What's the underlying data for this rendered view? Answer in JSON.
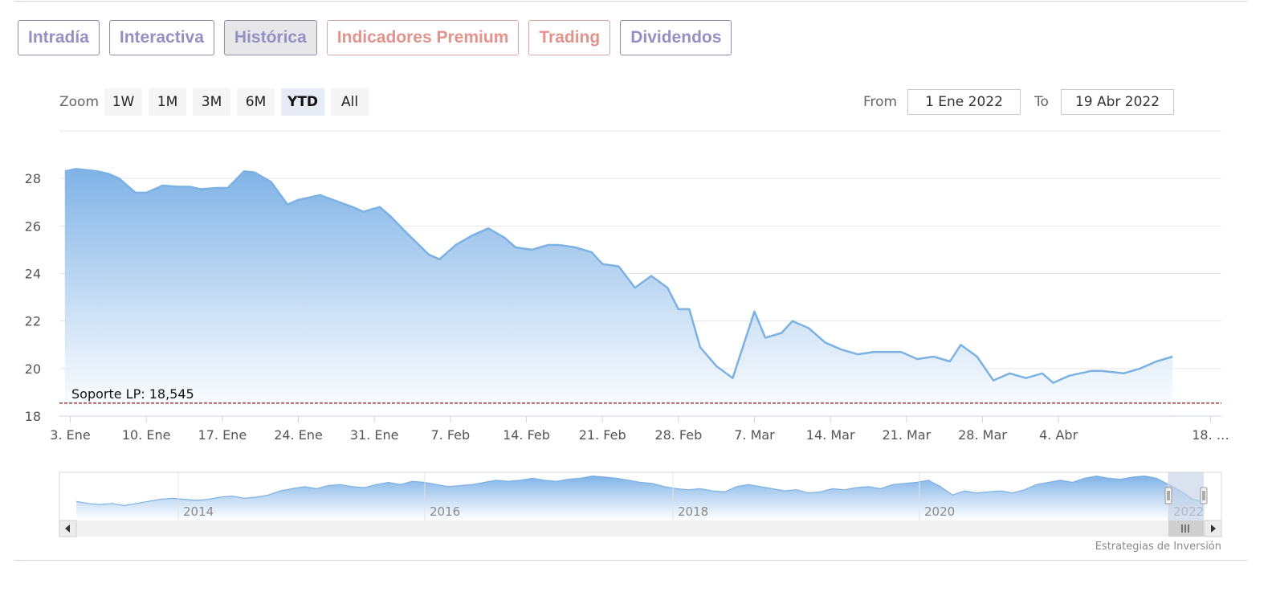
{
  "tabs": [
    {
      "label": "Intradía",
      "active": false,
      "premium": false
    },
    {
      "label": "Interactiva",
      "active": false,
      "premium": false
    },
    {
      "label": "Histórica",
      "active": true,
      "premium": false
    },
    {
      "label": "Indicadores Premium",
      "active": false,
      "premium": true
    },
    {
      "label": "Trading",
      "active": false,
      "premium": true
    },
    {
      "label": "Dividendos",
      "active": false,
      "premium": false
    }
  ],
  "zoom": {
    "label": "Zoom",
    "buttons": [
      "1W",
      "1M",
      "3M",
      "6M",
      "YTD",
      "All"
    ],
    "selected": "YTD"
  },
  "range": {
    "from_label": "From",
    "from_value": "1 Ene 2022",
    "to_label": "To",
    "to_value": "19 Abr 2022"
  },
  "colors": {
    "line": "#7cb1e4",
    "fill_top": "#7fb2e6",
    "support": "#8b1a1a",
    "grid": "#e6e6e6",
    "navigator_mask": "#c6d3e6"
  },
  "credit": "Estrategias de Inversión",
  "chart_data": {
    "type": "area",
    "title": "",
    "xlabel": "",
    "ylabel": "",
    "ylim": [
      18,
      30
    ],
    "yticks": [
      18,
      20,
      22,
      24,
      26,
      28
    ],
    "grid": true,
    "xticks": [
      {
        "label": "3. Ene",
        "day": 2
      },
      {
        "label": "10. Ene",
        "day": 9
      },
      {
        "label": "17. Ene",
        "day": 16
      },
      {
        "label": "24. Ene",
        "day": 23
      },
      {
        "label": "31. Ene",
        "day": 30
      },
      {
        "label": "7. Feb",
        "day": 37
      },
      {
        "label": "14. Feb",
        "day": 44
      },
      {
        "label": "21. Feb",
        "day": 51
      },
      {
        "label": "28. Feb",
        "day": 58
      },
      {
        "label": "7. Mar",
        "day": 65
      },
      {
        "label": "14. Mar",
        "day": 72
      },
      {
        "label": "21. Mar",
        "day": 79
      },
      {
        "label": "28. Mar",
        "day": 86
      },
      {
        "label": "4. Abr",
        "day": 93
      },
      {
        "label": "18. …",
        "day": 107
      }
    ],
    "series": [
      {
        "points": [
          [
            1.5,
            28.3
          ],
          [
            2.5,
            28.4
          ],
          [
            4.5,
            28.3
          ],
          [
            5.5,
            28.2
          ],
          [
            6.5,
            28.0
          ],
          [
            8,
            27.4
          ],
          [
            9,
            27.4
          ],
          [
            10.5,
            27.7
          ],
          [
            12,
            27.65
          ],
          [
            13,
            27.65
          ],
          [
            14,
            27.55
          ],
          [
            15.5,
            27.6
          ],
          [
            16.5,
            27.6
          ],
          [
            18,
            28.3
          ],
          [
            19,
            28.25
          ],
          [
            20.5,
            27.85
          ],
          [
            22,
            26.9
          ],
          [
            23,
            27.1
          ],
          [
            25,
            27.3
          ],
          [
            26.5,
            27.05
          ],
          [
            28,
            26.8
          ],
          [
            29,
            26.6
          ],
          [
            30.5,
            26.8
          ],
          [
            31.5,
            26.4
          ],
          [
            33,
            25.7
          ],
          [
            35,
            24.8
          ],
          [
            36,
            24.6
          ],
          [
            37.5,
            25.2
          ],
          [
            39,
            25.6
          ],
          [
            40.5,
            25.9
          ],
          [
            42,
            25.5
          ],
          [
            43,
            25.1
          ],
          [
            44.5,
            25.0
          ],
          [
            46,
            25.2
          ],
          [
            47,
            25.2
          ],
          [
            48.5,
            25.1
          ],
          [
            50,
            24.9
          ],
          [
            51,
            24.4
          ],
          [
            52.5,
            24.3
          ],
          [
            54,
            23.4
          ],
          [
            55.5,
            23.9
          ],
          [
            57,
            23.4
          ],
          [
            58,
            22.5
          ],
          [
            59,
            22.5
          ],
          [
            60,
            20.9
          ],
          [
            61.5,
            20.1
          ],
          [
            63,
            19.6
          ],
          [
            65,
            22.4
          ],
          [
            66,
            21.3
          ],
          [
            67.5,
            21.5
          ],
          [
            68.5,
            22.0
          ],
          [
            70,
            21.7
          ],
          [
            71.5,
            21.1
          ],
          [
            73,
            20.8
          ],
          [
            74.5,
            20.6
          ],
          [
            76,
            20.7
          ],
          [
            77,
            20.7
          ],
          [
            78.5,
            20.7
          ],
          [
            80,
            20.4
          ],
          [
            81.5,
            20.5
          ],
          [
            83,
            20.3
          ],
          [
            84,
            21.0
          ],
          [
            85.5,
            20.5
          ],
          [
            87,
            19.5
          ],
          [
            88.5,
            19.8
          ],
          [
            90,
            19.6
          ],
          [
            91.5,
            19.8
          ],
          [
            92.5,
            19.4
          ],
          [
            94,
            19.7
          ],
          [
            96,
            19.9
          ],
          [
            97,
            19.9
          ],
          [
            99,
            19.8
          ],
          [
            100.5,
            20.0
          ],
          [
            102,
            20.3
          ],
          [
            103.5,
            20.5
          ]
        ]
      }
    ],
    "annotations": [
      {
        "type": "hline",
        "y": 18.545,
        "label": "Soporte LP: 18,545"
      }
    ],
    "navigator": {
      "years": [
        "2014",
        "2016",
        "2018",
        "2020",
        "2022"
      ],
      "values": [
        14,
        13,
        12.5,
        13,
        12,
        13,
        14,
        15,
        15.5,
        15,
        14.5,
        15,
        16,
        16.5,
        15.5,
        16,
        17,
        19,
        20,
        21,
        20,
        21.5,
        22,
        21,
        20.5,
        22,
        23,
        22,
        23.5,
        23,
        22,
        21,
        21.5,
        22,
        23,
        24,
        23.5,
        24,
        25,
        24,
        23.5,
        24.5,
        25,
        26,
        25.5,
        25,
        24,
        23,
        22.5,
        21,
        20,
        19.5,
        20,
        19,
        18.5,
        21,
        22,
        21,
        20,
        19,
        19.5,
        18,
        18.5,
        20,
        19.5,
        20.5,
        21,
        20,
        22,
        22.5,
        23,
        24,
        21,
        17,
        19,
        18,
        18.5,
        19,
        18,
        19.5,
        22,
        23,
        24,
        23,
        25,
        26,
        25,
        24.5,
        25.5,
        26,
        25,
        22,
        19,
        15,
        14
      ]
    }
  }
}
